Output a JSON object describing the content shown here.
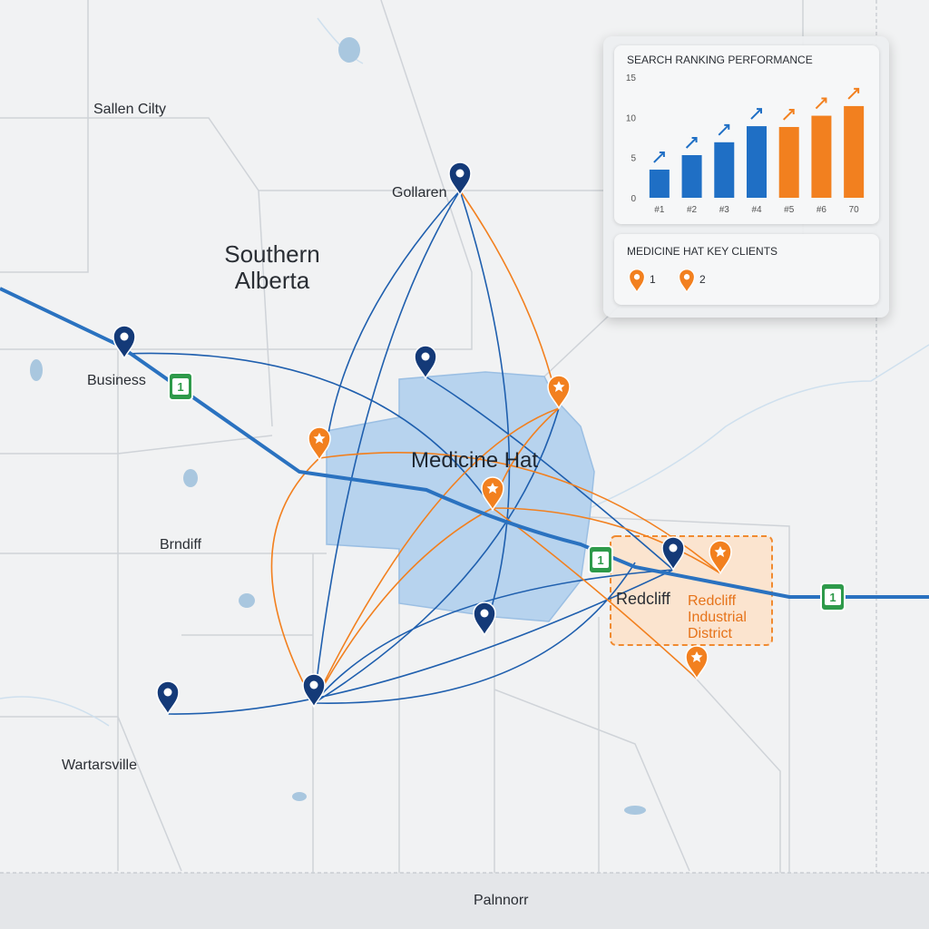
{
  "map": {
    "region_label": "Southern Alberta",
    "city_label": "Medicine Hat",
    "district_label": "Redcliff Industrial District",
    "places": [
      "Sallen Cilty",
      "Gollaren",
      "Business",
      "Brndiff",
      "Redcliff",
      "Wartarsville",
      "Palnnorr"
    ],
    "highway_shields": [
      "1",
      "1",
      "1"
    ]
  },
  "chart_data": {
    "type": "bar",
    "title": "SEARCH RANKING PERFORMANCE",
    "categories": [
      "#1",
      "#2",
      "#3",
      "#4",
      "#5",
      "#6",
      "70"
    ],
    "values": [
      3.5,
      5.3,
      6.9,
      8.9,
      8.8,
      10.2,
      11.4
    ],
    "colors": [
      "#1f6fc5",
      "#1f6fc5",
      "#1f6fc5",
      "#1f6fc5",
      "#f2801f",
      "#f2801f",
      "#f2801f"
    ],
    "ylim": [
      0,
      15
    ],
    "yticks": [
      0,
      5,
      10,
      15
    ],
    "grid": false
  },
  "legend": {
    "title": "MEDICINE HAT KEY CLIENTS",
    "items": [
      "1",
      "2"
    ]
  }
}
